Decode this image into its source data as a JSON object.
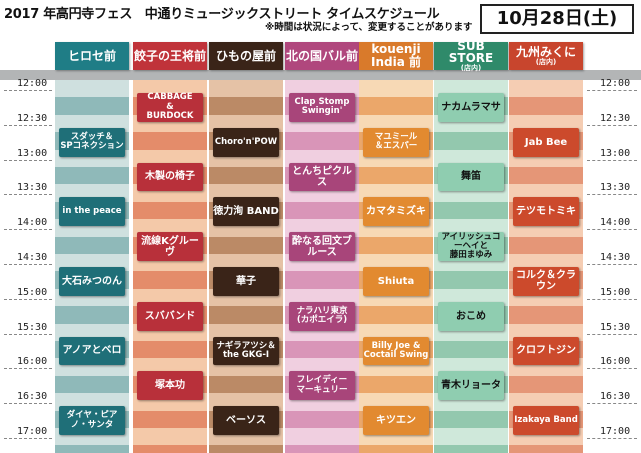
{
  "header": {
    "title": "2017 年高円寺フェス　中通りミュージックストリート タイムスケジュール",
    "note": "※時間は状況によって、変更することがあります",
    "date": "10月28日(土)"
  },
  "times": [
    "12:00",
    "12:30",
    "13:00",
    "13:30",
    "14:00",
    "14:30",
    "15:00",
    "15:30",
    "16:00",
    "16:30",
    "17:00"
  ],
  "columns": [
    {
      "name": "ヒロセ前",
      "sub": "",
      "head_color": "#1f7d86",
      "stripe_a": "#cfe0df",
      "stripe_b": "#8fb9b9",
      "events": [
        {
          "label": "スダッチ＆\nSPコネクション",
          "start": 1,
          "end": 2,
          "color": "#1f6f78"
        },
        {
          "label": "in the peace",
          "start": 3,
          "end": 4,
          "color": "#1f6f78"
        },
        {
          "label": "大石みつのん",
          "start": 5,
          "end": 6,
          "color": "#1f6f78"
        },
        {
          "label": "アノアとベロ",
          "start": 7,
          "end": 8,
          "color": "#1f6f78"
        },
        {
          "label": "ダイヤ・ピアノ・サンタ",
          "start": 9,
          "end": 10,
          "color": "#1f6f78"
        }
      ]
    },
    {
      "name": "餃子の王将前",
      "sub": "",
      "head_color": "#c0333a",
      "stripe_a": "#f4c9a9",
      "stripe_b": "#e48c6a",
      "events": [
        {
          "label": "CABBAGE\n&\nBURDOCK",
          "start": 0,
          "end": 1,
          "color": "#b8303a"
        },
        {
          "label": "木製の椅子",
          "start": 2,
          "end": 3,
          "color": "#b8303a"
        },
        {
          "label": "流線Kグルーヴ",
          "start": 4,
          "end": 5,
          "color": "#b8303a"
        },
        {
          "label": "スババンド",
          "start": 6,
          "end": 7,
          "color": "#b8303a"
        },
        {
          "label": "塚本功",
          "start": 8,
          "end": 9,
          "color": "#b8303a"
        }
      ]
    },
    {
      "name": "ひもの屋前",
      "sub": "",
      "head_color": "#3a2418",
      "stripe_a": "#e5c2a6",
      "stripe_b": "#bb8a66",
      "events": [
        {
          "label": "Choro'n'POW",
          "start": 1,
          "end": 2,
          "color": "#3a2418"
        },
        {
          "label": "徳力洵 BAND",
          "start": 3,
          "end": 4,
          "color": "#3a2418"
        },
        {
          "label": "華子",
          "start": 5,
          "end": 6,
          "color": "#3a2418"
        },
        {
          "label": "ナギラアツシ＆\nthe GKG-I",
          "start": 7,
          "end": 8,
          "color": "#3a2418"
        },
        {
          "label": "ベーソス",
          "start": 9,
          "end": 10,
          "color": "#3a2418"
        }
      ]
    },
    {
      "name": "北の国バル前",
      "sub": "",
      "head_color": "#b0477d",
      "stripe_a": "#f0cfe0",
      "stripe_b": "#d995b8",
      "events": [
        {
          "label": "Clap Stomp\nSwingin'",
          "start": 0,
          "end": 1,
          "color": "#a8457a"
        },
        {
          "label": "とんちピクルス",
          "start": 2,
          "end": 3,
          "color": "#a8457a"
        },
        {
          "label": "酔なる回文ブルース",
          "start": 4,
          "end": 5,
          "color": "#a8457a"
        },
        {
          "label": "ナラハリ東京\n(カポエイラ)",
          "start": 6,
          "end": 7,
          "color": "#a8457a"
        },
        {
          "label": "フレイディー\nマーキュリー",
          "start": 8,
          "end": 9,
          "color": "#a8457a"
        }
      ]
    },
    {
      "name": "kouenji India 前",
      "sub": "",
      "head_color": "#d97a2b",
      "stripe_a": "#f7d9b5",
      "stripe_b": "#eba76a",
      "events": [
        {
          "label": "マユミール\n＆エスパー",
          "start": 1,
          "end": 2,
          "color": "#e28a30"
        },
        {
          "label": "カマタミズキ",
          "start": 3,
          "end": 4,
          "color": "#e28a30"
        },
        {
          "label": "Shiuta",
          "start": 5,
          "end": 6,
          "color": "#e28a30"
        },
        {
          "label": "Billy Joe &\nCoctail Swing",
          "start": 7,
          "end": 8,
          "color": "#e28a30"
        },
        {
          "label": "キツエン",
          "start": 9,
          "end": 10,
          "color": "#e28a30"
        }
      ]
    },
    {
      "name": "SUB STORE",
      "sub": "(店内)",
      "head_color": "#2f8a6a",
      "stripe_a": "#cfe8da",
      "stripe_b": "#93c8ae",
      "events": [
        {
          "label": "ナカムラマサ",
          "start": 0,
          "end": 1,
          "color": "#8fcdb0"
        },
        {
          "label": "舞笛",
          "start": 2,
          "end": 3,
          "color": "#8fcdb0"
        },
        {
          "label": "アイリッシュコーヘイと\n藤田まゆみ",
          "start": 4,
          "end": 5,
          "color": "#8fcdb0"
        },
        {
          "label": "おこめ",
          "start": 6,
          "end": 7,
          "color": "#8fcdb0"
        },
        {
          "label": "青木リョータ",
          "start": 8,
          "end": 9,
          "color": "#8fcdb0"
        }
      ]
    },
    {
      "name": "九州みくに",
      "sub": "(店内)",
      "head_color": "#c8452d",
      "stripe_a": "#f5cdb3",
      "stripe_b": "#e59677",
      "events": [
        {
          "label": "Jab Bee",
          "start": 1,
          "end": 2,
          "color": "#cc4a2c"
        },
        {
          "label": "テツモトミキ",
          "start": 3,
          "end": 4,
          "color": "#cc4a2c"
        },
        {
          "label": "コルク＆クラウン",
          "start": 5,
          "end": 6,
          "color": "#cc4a2c"
        },
        {
          "label": "クロフトジン",
          "start": 7,
          "end": 8,
          "color": "#cc4a2c"
        },
        {
          "label": "Izakaya Band",
          "start": 9,
          "end": 10,
          "color": "#cc4a2c"
        }
      ]
    }
  ]
}
